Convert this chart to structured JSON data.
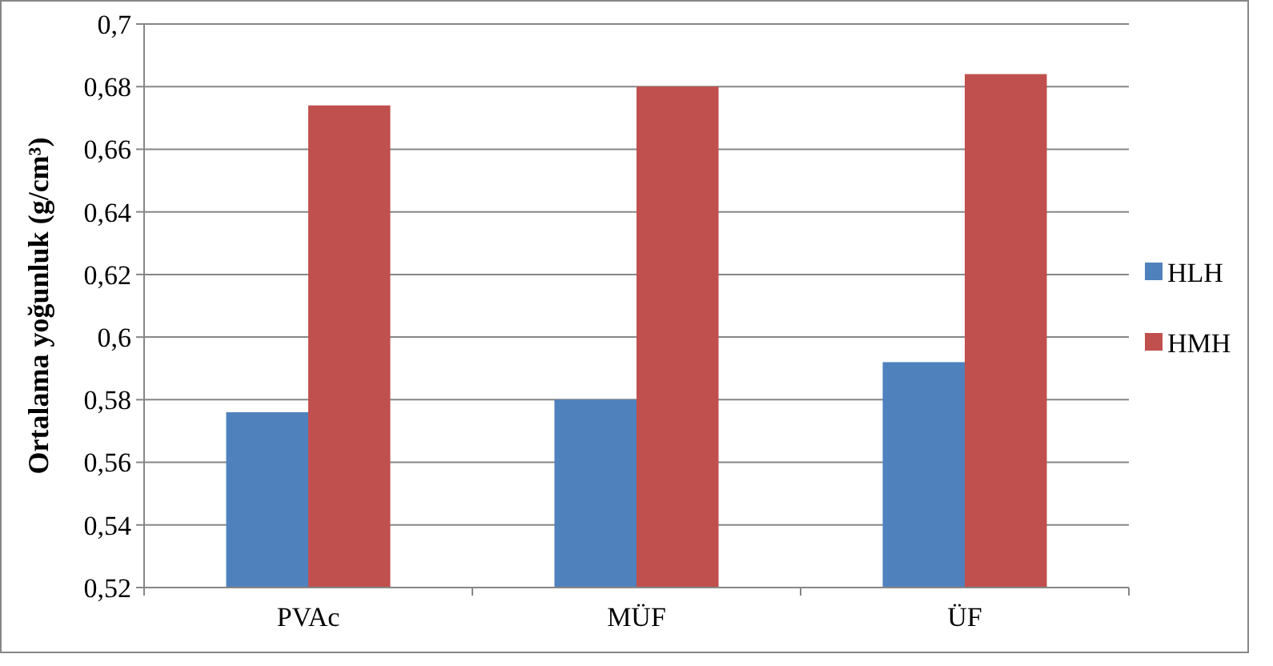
{
  "chart_data": {
    "type": "bar",
    "ylabel": "Ortalama yoğunluk (g/cm³)",
    "categories": [
      "PVAc",
      "MÜF",
      "ÜF"
    ],
    "series": [
      {
        "name": "HLH",
        "color": "#4f81bd",
        "values": [
          0.576,
          0.58,
          0.592
        ]
      },
      {
        "name": "HMH",
        "color": "#c0504d",
        "values": [
          0.674,
          0.68,
          0.684
        ]
      }
    ],
    "ylim": [
      0.52,
      0.7
    ],
    "yticks": [
      {
        "value": 0.52,
        "label": "0,52"
      },
      {
        "value": 0.54,
        "label": "0,54"
      },
      {
        "value": 0.56,
        "label": "0,56"
      },
      {
        "value": 0.58,
        "label": "0,58"
      },
      {
        "value": 0.6,
        "label": "0,6"
      },
      {
        "value": 0.62,
        "label": "0,62"
      },
      {
        "value": 0.64,
        "label": "0,64"
      },
      {
        "value": 0.66,
        "label": "0,66"
      },
      {
        "value": 0.68,
        "label": "0,68"
      },
      {
        "value": 0.7,
        "label": "0,7"
      }
    ],
    "grid": "y",
    "legend": "right"
  }
}
